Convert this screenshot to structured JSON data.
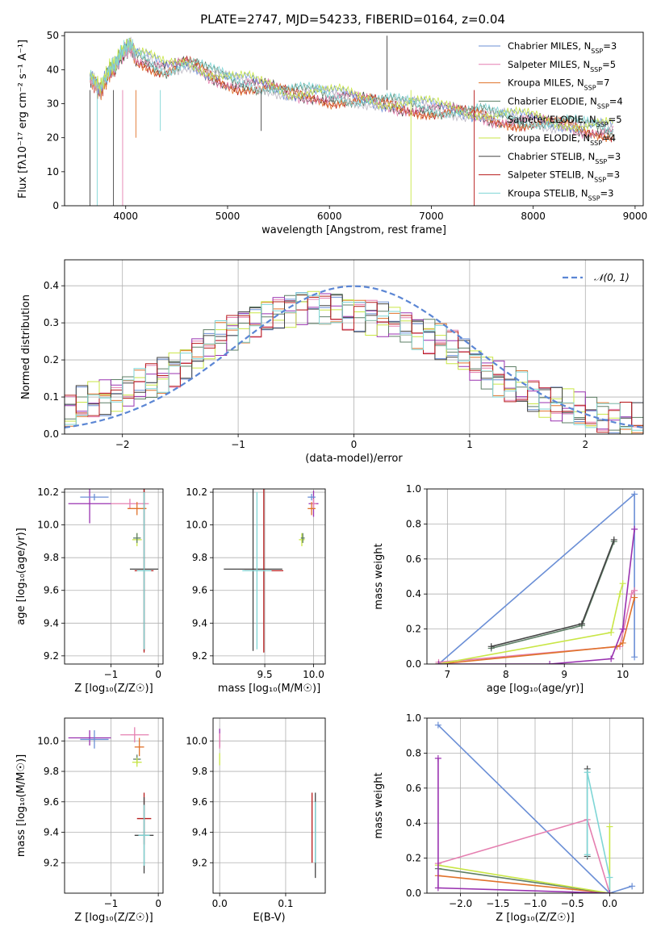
{
  "figure": {
    "title": "PLATE=2747, MJD=54233, FIBERID=0164, z=0.04",
    "colors": [
      "#6b8fd6",
      "#e57fb0",
      "#e0722a",
      "#5e7f66",
      "#bdb8c4",
      "#c9e646",
      "#444444",
      "#b71c1c",
      "#7fd6d6"
    ],
    "purple": "#9932b0"
  },
  "chart_data": [
    {
      "type": "line",
      "title": "PLATE=2747, MJD=54233, FIBERID=0164, z=0.04",
      "xlabel": "wavelength [Angstrom, rest frame]",
      "ylabel": "Flux [f",
      "ylabel_rich": "Flux [fλ10⁻¹⁷ erg cm⁻² s⁻¹ A⁻¹]",
      "xlim": [
        3400,
        9080
      ],
      "ylim": [
        0,
        51
      ],
      "xticks": [
        "4000",
        "5000",
        "6000",
        "7000",
        "8000",
        "9000"
      ],
      "yticks": [
        "0",
        "10",
        "20",
        "30",
        "40",
        "50"
      ],
      "legend_position": "top-right",
      "series": [
        {
          "name": "Chabrier MILES, N",
          "sub": "SSP",
          "suffix": "=3"
        },
        {
          "name": "Salpeter MILES, N",
          "sub": "SSP",
          "suffix": "=5"
        },
        {
          "name": "Kroupa MILES, N",
          "sub": "SSP",
          "suffix": "=7"
        },
        {
          "name": "Chabrier ELODIE, N",
          "sub": "SSP",
          "suffix": "=4"
        },
        {
          "name": "Salpeter ELODIE, N",
          "sub": "SSP",
          "suffix": "=5"
        },
        {
          "name": "Kroupa ELODIE, N",
          "sub": "SSP",
          "suffix": "=4"
        },
        {
          "name": "Chabrier STELIB, N",
          "sub": "SSP",
          "suffix": "=3"
        },
        {
          "name": "Salpeter STELIB, N",
          "sub": "SSP",
          "suffix": "=3"
        },
        {
          "name": "Kroupa STELIB, N",
          "sub": "SSP",
          "suffix": "=3"
        }
      ],
      "spectrum": {
        "x": [
          3650,
          3700,
          3750,
          3800,
          3850,
          3900,
          3950,
          4000,
          4050,
          4100,
          4200,
          4300,
          4400,
          4500,
          4600,
          4700,
          4800,
          4900,
          5000,
          5100,
          5200,
          5300,
          5400,
          5500,
          5600,
          5700,
          5800,
          5900,
          6000,
          6100,
          6200,
          6300,
          6400,
          6500,
          6600,
          6700,
          6800,
          6900,
          7000,
          7100,
          7200,
          7300,
          7400,
          7500,
          7600,
          7700,
          7800,
          7900,
          8000,
          8100,
          8200,
          8300,
          8400,
          8500,
          8600,
          8700,
          8800
        ],
        "y": [
          38,
          36,
          34,
          37,
          40,
          41,
          44,
          46,
          47,
          44,
          43,
          41,
          40,
          41,
          42,
          41,
          39,
          38,
          37,
          36,
          36,
          35,
          35,
          34,
          33,
          33,
          33,
          33,
          32,
          32,
          31.5,
          31,
          31,
          30,
          30,
          29.5,
          29.5,
          29,
          28.5,
          28,
          28,
          27.5,
          27,
          27,
          26,
          26,
          25.5,
          25,
          25,
          24.5,
          24,
          24,
          23.5,
          23,
          23,
          22.5,
          22
        ]
      }
    },
    {
      "type": "histogram",
      "xlabel": "(data-model)/error",
      "ylabel": "Normed distribution",
      "xlim": [
        -2.5,
        2.5
      ],
      "ylim": [
        0,
        0.47
      ],
      "xticks": [
        "−2",
        "−1",
        "0",
        "1",
        "2"
      ],
      "yticks": [
        "0.0",
        "0.1",
        "0.2",
        "0.3",
        "0.4"
      ],
      "legend": "𝒩(0, 1)",
      "legend_position": "top-right",
      "bins": [
        -2.5,
        -2.4,
        -2.3,
        -2.2,
        -2.1,
        -2.0,
        -1.9,
        -1.8,
        -1.7,
        -1.6,
        -1.5,
        -1.4,
        -1.3,
        -1.2,
        -1.1,
        -1.0,
        -0.9,
        -0.8,
        -0.7,
        -0.6,
        -0.5,
        -0.4,
        -0.3,
        -0.2,
        -0.1,
        0.0,
        0.1,
        0.2,
        0.3,
        0.4,
        0.5,
        0.6,
        0.7,
        0.8,
        0.9,
        1.0,
        1.1,
        1.2,
        1.3,
        1.4,
        1.5,
        1.6,
        1.7,
        1.8,
        1.9,
        2.0,
        2.1,
        2.2,
        2.3,
        2.4
      ],
      "base_density": [
        0.06,
        0.08,
        0.09,
        0.1,
        0.11,
        0.12,
        0.13,
        0.14,
        0.16,
        0.18,
        0.2,
        0.22,
        0.24,
        0.26,
        0.28,
        0.3,
        0.31,
        0.32,
        0.33,
        0.34,
        0.35,
        0.35,
        0.34,
        0.34,
        0.33,
        0.33,
        0.32,
        0.31,
        0.3,
        0.29,
        0.28,
        0.27,
        0.25,
        0.23,
        0.21,
        0.19,
        0.17,
        0.15,
        0.13,
        0.12,
        0.1,
        0.09,
        0.08,
        0.07,
        0.06,
        0.05,
        0.045,
        0.04,
        0.035,
        0.03
      ],
      "normal_mean": 0,
      "normal_sd": 1
    },
    {
      "type": "scatter",
      "xlabel": "Z [log",
      "xlabel_rich": "Z [log₁₀(Z/Z☉)]",
      "ylabel_rich": "age  [log₁₀(age/yr)]",
      "xlim": [
        -1.98,
        0.1
      ],
      "ylim": [
        9.15,
        10.22
      ],
      "xticks": [
        "−1",
        "0"
      ],
      "yticks": [
        "9.2",
        "9.4",
        "9.6",
        "9.8",
        "10.0",
        "10.2"
      ],
      "points": [
        {
          "x": -1.45,
          "y": 10.13,
          "xerr": 0.45,
          "yerr": 0.12,
          "c": "purple"
        },
        {
          "x": -1.35,
          "y": 10.17,
          "xerr": 0.3,
          "yerr": 0.02,
          "c": 0
        },
        {
          "x": -0.6,
          "y": 10.13,
          "xerr": 0.4,
          "yerr": 0.03,
          "c": 1
        },
        {
          "x": -0.45,
          "y": 10.1,
          "xerr": 0.2,
          "yerr": 0.04,
          "c": 2
        },
        {
          "x": -0.45,
          "y": 9.91,
          "xerr": 0.1,
          "yerr": 0.04,
          "c": 5
        },
        {
          "x": -0.45,
          "y": 9.92,
          "xerr": 0.08,
          "yerr": 0.03,
          "c": 3
        },
        {
          "x": -0.3,
          "y": 9.73,
          "xerr": 0.3,
          "yerr": 0.5,
          "c": 6
        },
        {
          "x": -0.3,
          "y": 9.72,
          "xerr": 0.2,
          "yerr": 0.5,
          "c": 7
        },
        {
          "x": -0.3,
          "y": 9.72,
          "xerr": 0.15,
          "yerr": 0.48,
          "c": 8
        }
      ]
    },
    {
      "type": "scatter",
      "xlabel_rich": "mass [log₁₀(M/M☉)]",
      "xlim": [
        8.97,
        10.12
      ],
      "ylim": [
        9.15,
        10.22
      ],
      "xticks": [
        "9.5",
        "10.0"
      ],
      "yticks": [
        "9.2",
        "9.4",
        "9.6",
        "9.8",
        "10.0",
        "10.2"
      ],
      "points": [
        {
          "x": 10.0,
          "y": 10.13,
          "xerr": 0.05,
          "yerr": 0.08,
          "c": "purple"
        },
        {
          "x": 9.98,
          "y": 10.17,
          "xerr": 0.04,
          "yerr": 0.02,
          "c": 0
        },
        {
          "x": 10.0,
          "y": 10.13,
          "xerr": 0.03,
          "yerr": 0.03,
          "c": 1
        },
        {
          "x": 9.98,
          "y": 10.1,
          "xerr": 0.04,
          "yerr": 0.04,
          "c": 2
        },
        {
          "x": 9.88,
          "y": 9.91,
          "xerr": 0.03,
          "yerr": 0.04,
          "c": 5
        },
        {
          "x": 9.89,
          "y": 9.92,
          "xerr": 0.02,
          "yerr": 0.03,
          "c": 3
        },
        {
          "x": 9.38,
          "y": 9.73,
          "xerr": 0.3,
          "yerr": 0.5,
          "c": 6
        },
        {
          "x": 9.49,
          "y": 9.72,
          "xerr": 0.2,
          "yerr": 0.5,
          "c": 7
        },
        {
          "x": 9.42,
          "y": 9.72,
          "xerr": 0.15,
          "yerr": 0.48,
          "c": 8
        }
      ]
    },
    {
      "type": "line",
      "xlabel_rich": "age  [log₁₀(age/yr)]",
      "ylabel": "mass weight",
      "xlim": [
        6.65,
        10.35
      ],
      "ylim": [
        0,
        1
      ],
      "xticks": [
        "7",
        "8",
        "9",
        "10"
      ],
      "yticks": [
        "0.0",
        "0.2",
        "0.4",
        "0.6",
        "0.8",
        "1.0"
      ],
      "lines": [
        {
          "c": 0,
          "x": [
            6.85,
            10.2,
            10.2
          ],
          "y": [
            0.0,
            0.97,
            0.04
          ]
        },
        {
          "c": 1,
          "x": [
            6.85,
            9.95,
            10.15,
            10.2
          ],
          "y": [
            0.01,
            0.1,
            0.4,
            0.42
          ]
        },
        {
          "c": 2,
          "x": [
            6.85,
            9.9,
            10.0,
            10.2
          ],
          "y": [
            0.0,
            0.1,
            0.12,
            0.38
          ]
        },
        {
          "c": 3,
          "x": [
            7.75,
            9.3,
            9.85
          ],
          "y": [
            0.09,
            0.22,
            0.7
          ]
        },
        {
          "c": 5,
          "x": [
            6.85,
            9.8,
            9.95,
            10.0
          ],
          "y": [
            0.0,
            0.18,
            0.4,
            0.46
          ]
        },
        {
          "c": 6,
          "x": [
            7.75,
            9.3,
            9.85
          ],
          "y": [
            0.1,
            0.23,
            0.71
          ]
        },
        {
          "c": "purple",
          "x": [
            6.85,
            8.75,
            9.8,
            10.0,
            10.2
          ],
          "y": [
            0.0,
            0.0,
            0.03,
            0.2,
            0.77
          ]
        }
      ]
    },
    {
      "type": "scatter",
      "xlabel_rich": "Z [log₁₀(Z/Z☉)]",
      "ylabel_rich": "mass [log₁₀(M/M☉)]",
      "xlim": [
        -1.98,
        0.1
      ],
      "ylim": [
        9.0,
        10.15
      ],
      "xticks": [
        "−1",
        "0"
      ],
      "yticks": [
        "9.2",
        "9.4",
        "9.6",
        "9.8",
        "10.0"
      ],
      "points": [
        {
          "x": -1.45,
          "y": 10.02,
          "xerr": 0.45,
          "yerr": 0.05,
          "c": "purple"
        },
        {
          "x": -1.35,
          "y": 10.01,
          "xerr": 0.3,
          "yerr": 0.06,
          "c": 0
        },
        {
          "x": -0.5,
          "y": 10.04,
          "xerr": 0.3,
          "yerr": 0.05,
          "c": 1
        },
        {
          "x": -0.4,
          "y": 9.96,
          "xerr": 0.1,
          "yerr": 0.06,
          "c": 2
        },
        {
          "x": -0.45,
          "y": 9.88,
          "xerr": 0.08,
          "yerr": 0.03,
          "c": 3
        },
        {
          "x": -0.45,
          "y": 9.86,
          "xerr": 0.1,
          "yerr": 0.03,
          "c": 5
        },
        {
          "x": -0.3,
          "y": 9.49,
          "xerr": 0.15,
          "yerr": 0.17,
          "c": 7
        },
        {
          "x": -0.3,
          "y": 9.38,
          "xerr": 0.2,
          "yerr": 0.25,
          "c": 6
        },
        {
          "x": -0.3,
          "y": 9.38,
          "xerr": 0.12,
          "yerr": 0.2,
          "c": 8
        }
      ]
    },
    {
      "type": "scatter",
      "xlabel": "E(B-V)",
      "xlim": [
        -0.01,
        0.16
      ],
      "ylim": [
        9.0,
        10.15
      ],
      "xticks": [
        "0.0",
        "0.1"
      ],
      "yticks": [
        "9.2",
        "9.4",
        "9.6",
        "9.8",
        "10.0"
      ],
      "points": [
        {
          "x": 0.0,
          "y": 10.02,
          "xerr": 0.0,
          "yerr": 0.06,
          "c": "purple"
        },
        {
          "x": 0.0,
          "y": 10.0,
          "xerr": 0.0,
          "yerr": 0.05,
          "c": 1
        },
        {
          "x": 0.0,
          "y": 9.88,
          "xerr": 0.0,
          "yerr": 0.04,
          "c": 5
        },
        {
          "x": 0.14,
          "y": 9.43,
          "xerr": 0.0,
          "yerr": 0.23,
          "c": 7
        },
        {
          "x": 0.145,
          "y": 9.38,
          "xerr": 0.0,
          "yerr": 0.28,
          "c": 6
        },
        {
          "x": 0.145,
          "y": 9.4,
          "xerr": 0.0,
          "yerr": 0.2,
          "c": 8
        }
      ]
    },
    {
      "type": "line",
      "xlabel_rich": "Z [log₁₀(Z/Z☉)]",
      "ylabel": "mass weight",
      "xlim": [
        -2.45,
        0.45
      ],
      "ylim": [
        0,
        1
      ],
      "xticks": [
        "−2.0",
        "−1.5",
        "−1.0",
        "−0.5",
        "0.0"
      ],
      "yticks": [
        "0.0",
        "0.2",
        "0.4",
        "0.6",
        "0.8",
        "1.0"
      ],
      "lines": [
        {
          "c": 0,
          "x": [
            -2.3,
            0.0,
            0.3
          ],
          "y": [
            0.96,
            0.0,
            0.04
          ]
        },
        {
          "c": 1,
          "x": [
            -2.3,
            -0.3,
            0.0
          ],
          "y": [
            0.17,
            0.42,
            0.0
          ]
        },
        {
          "c": 2,
          "x": [
            -2.3,
            0.0
          ],
          "y": [
            0.1,
            0.0
          ]
        },
        {
          "c": 3,
          "x": [
            -2.3,
            0.0
          ],
          "y": [
            0.14,
            0.0
          ]
        },
        {
          "c": 5,
          "x": [
            -2.3,
            0.0,
            0.0
          ],
          "y": [
            0.16,
            0.0,
            0.38
          ]
        },
        {
          "c": 6,
          "x": [
            -0.3,
            -0.3
          ],
          "y": [
            0.21,
            0.71
          ]
        },
        {
          "c": 8,
          "x": [
            -0.3,
            -0.3,
            0.0,
            0.0
          ],
          "y": [
            0.22,
            0.69,
            0.09,
            0.0
          ]
        },
        {
          "c": "purple",
          "x": [
            -2.3,
            -2.3,
            0.0
          ],
          "y": [
            0.77,
            0.03,
            0.0
          ]
        }
      ]
    }
  ]
}
